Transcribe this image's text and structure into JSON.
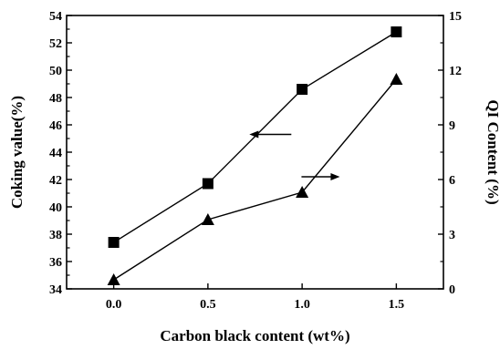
{
  "chart_data": {
    "type": "line",
    "xlabel": "Carbon black content (wt%)",
    "ylabel_left": "Coking value(%)",
    "ylabel_right": "QI Content (%)",
    "x_ticks": [
      "0.0",
      "0.5",
      "1.0",
      "1.5"
    ],
    "xlim": [
      -0.25,
      1.75
    ],
    "ylim_left": [
      34,
      54
    ],
    "ylim_right": [
      0,
      15
    ],
    "y_ticks_left": [
      "34",
      "36",
      "38",
      "40",
      "42",
      "44",
      "46",
      "48",
      "50",
      "52",
      "54"
    ],
    "y_ticks_right": [
      "0",
      "3",
      "6",
      "9",
      "12",
      "15"
    ],
    "grid": false,
    "series": [
      {
        "axis": "left",
        "marker": "square",
        "x": [
          0.0,
          0.5,
          1.0,
          1.5
        ],
        "values": [
          37.4,
          41.7,
          48.6,
          52.8
        ]
      },
      {
        "axis": "right",
        "marker": "triangle",
        "x": [
          0.0,
          0.5,
          1.0,
          1.5
        ],
        "values": [
          0.5,
          3.8,
          5.3,
          11.5
        ]
      }
    ],
    "annotations": [
      {
        "type": "arrow",
        "direction": "left",
        "points_to": "left-axis"
      },
      {
        "type": "arrow",
        "direction": "right",
        "points_to": "right-axis"
      }
    ]
  }
}
